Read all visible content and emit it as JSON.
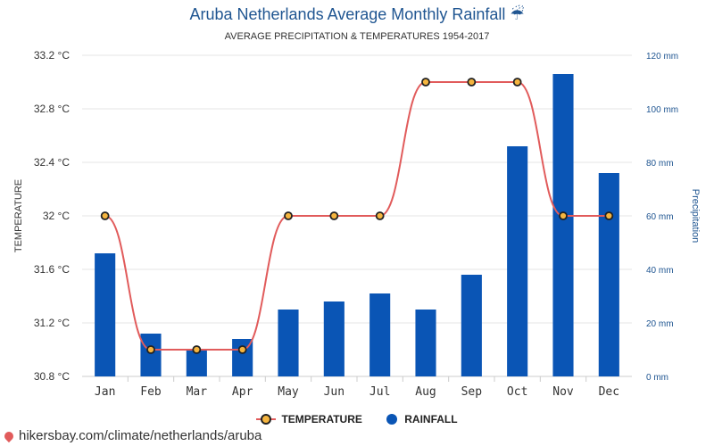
{
  "header": {
    "title": "Aruba Netherlands Average Monthly Rainfall ☔",
    "subtitle": "AVERAGE PRECIPITATION & TEMPERATURES 1954-2017"
  },
  "chart_data": {
    "type": "bar+line",
    "categories": [
      "Jan",
      "Feb",
      "Mar",
      "Apr",
      "May",
      "Jun",
      "Jul",
      "Aug",
      "Sep",
      "Oct",
      "Nov",
      "Dec"
    ],
    "series": [
      {
        "name": "TEMPERATURE",
        "type": "line",
        "axis": "left",
        "values": [
          32,
          31,
          31,
          31,
          32,
          32,
          32,
          33,
          33,
          33,
          32,
          32
        ]
      },
      {
        "name": "RAINFALL",
        "type": "bar",
        "axis": "right",
        "values": [
          46,
          16,
          10,
          14,
          25,
          28,
          31,
          25,
          38,
          86,
          113,
          76
        ]
      }
    ],
    "y_left": {
      "label": "TEMPERATURE",
      "min": 30.8,
      "max": 33.2,
      "ticks": [
        "33.2 °C",
        "32.8 °C",
        "32.4 °C",
        "32 °C",
        "31.6 °C",
        "31.2 °C",
        "30.8 °C"
      ]
    },
    "y_right": {
      "label": "Precipitation",
      "min": 0,
      "max": 120,
      "ticks": [
        "120 mm",
        "100 mm",
        "80 mm",
        "60 mm",
        "40 mm",
        "20 mm",
        "0 mm"
      ]
    },
    "grid": true,
    "legend_position": "bottom",
    "colors": {
      "line": "#e15b5b",
      "marker_fill": "#f5b53f",
      "marker_stroke": "#222222",
      "bar": "#0a55b5"
    }
  },
  "legend": {
    "temperature": "TEMPERATURE",
    "rainfall": "RAINFALL"
  },
  "footer": {
    "link": "hikersbay.com/climate/netherlands/aruba"
  }
}
